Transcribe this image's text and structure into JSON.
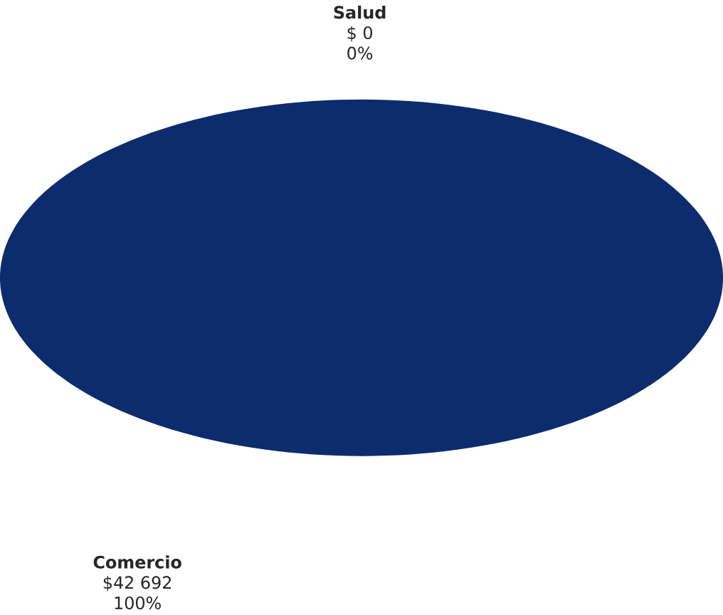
{
  "chart_data": {
    "type": "pie",
    "categories": [
      "Salud",
      "Comercio"
    ],
    "values": [
      0,
      42692
    ],
    "colors": [
      "#8fb0d0",
      "#0c2c6e"
    ],
    "value_labels": [
      "$ 0",
      "$42 692"
    ],
    "annotations": [
      {
        "text": "0%",
        "x": "Salud"
      },
      {
        "text": "100%",
        "x": "Comercio"
      }
    ]
  }
}
